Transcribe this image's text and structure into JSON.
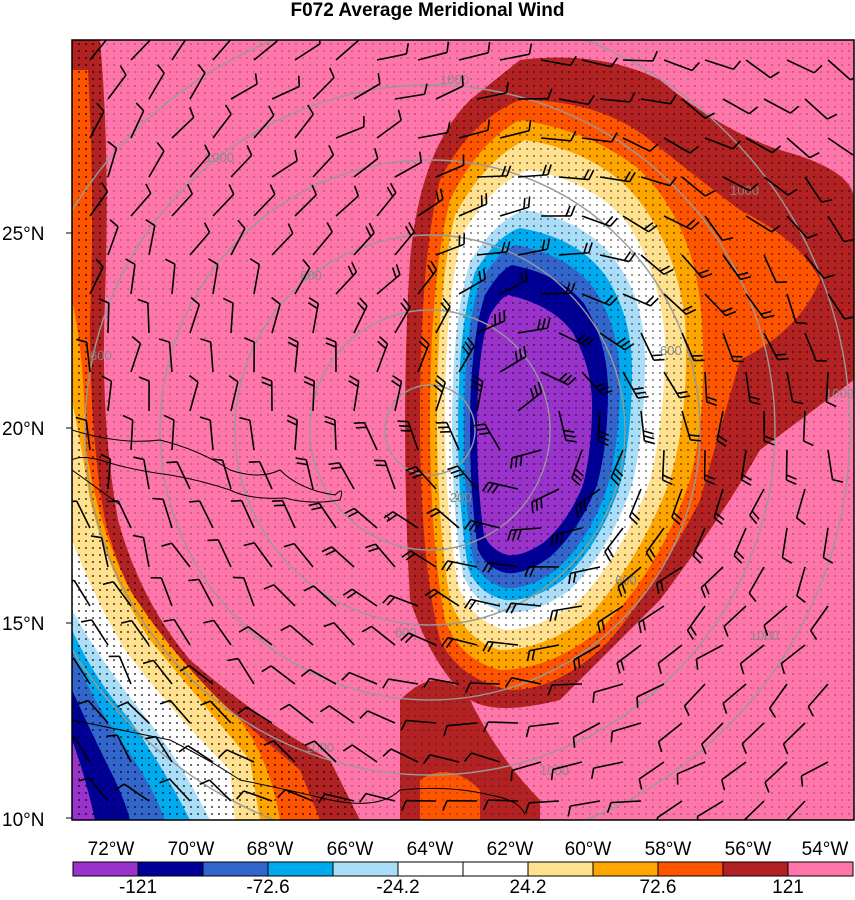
{
  "title": "F072 Average Meridional Wind",
  "lat_labels": [
    "25°N",
    "20°N",
    "15°N",
    "10°N"
  ],
  "lon_labels": [
    "72°W",
    "70°W",
    "68°W",
    "66°W",
    "64°W",
    "62°W",
    "60°W",
    "58°W",
    "56°W",
    "54°W"
  ],
  "colorbar": {
    "colors": [
      "#9933cc",
      "#000099",
      "#3366cc",
      "#00aaee",
      "#aaddf7",
      "#ffffff",
      "#ffffff",
      "#ffe18f",
      "#ffa500",
      "#ff5500",
      "#b22222",
      "#ff77aa"
    ],
    "labels": [
      "-121",
      "-72.6",
      "-24.2",
      "24.2",
      "72.6",
      "121"
    ]
  },
  "contour_labels": [
    "1000",
    "1000",
    "600",
    "600",
    "600",
    "600",
    "600",
    "200",
    "1000",
    "1000",
    "1000",
    "1000",
    "1000"
  ],
  "colors": {
    "outer": "#ff77aa",
    "darkred": "#b22222",
    "orange_red": "#ff5500",
    "orange": "#ffa500",
    "yellow": "#ffe18f",
    "white": "#ffffff",
    "lightblue": "#aaddf7",
    "cyan": "#00aaee",
    "medblue": "#3366cc",
    "navy": "#000099",
    "purple": "#9933cc",
    "circle": "#999999"
  }
}
